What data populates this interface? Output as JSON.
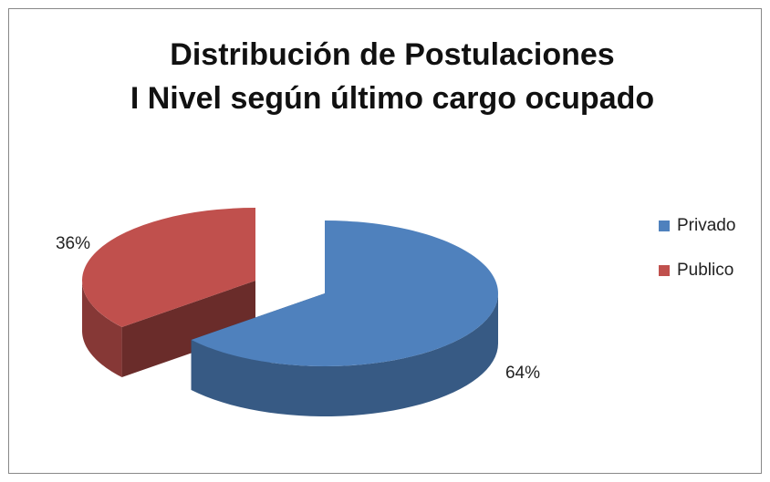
{
  "chart_data": {
    "type": "pie3d",
    "title": [
      "Distribución de Postulaciones",
      "I Nivel según último cargo ocupado"
    ],
    "categories": [
      "Privado",
      "Publico"
    ],
    "values": [
      64,
      36
    ],
    "value_labels": [
      "64%",
      "36%"
    ],
    "colors": [
      "#4f81bd",
      "#c0504d"
    ],
    "legend": "right"
  }
}
